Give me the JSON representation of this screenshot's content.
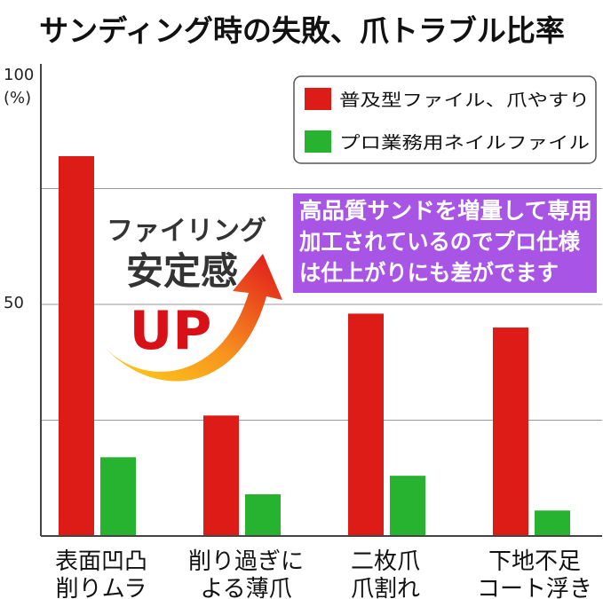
{
  "chart_data": {
    "type": "bar",
    "title": "サンディング時の失敗、爪トラブル比率",
    "ylabel_unit": "(%)",
    "ylim": [
      0,
      100
    ],
    "y_ticks": [
      "100",
      "50"
    ],
    "grid": true,
    "legend_position": "top-right",
    "categories": [
      [
        "表面凹凸",
        "削りムラ"
      ],
      [
        "削り過ぎに",
        "よる薄爪"
      ],
      [
        "二枚爪",
        "爪割れ"
      ],
      [
        "下地不足",
        "コート浮き"
      ]
    ],
    "series": [
      {
        "name": "普及型ファイル、爪やすり",
        "color": "#dd1c17",
        "values": [
          82,
          26,
          48,
          45
        ]
      },
      {
        "name": "プロ業務用ネイルファイル",
        "color": "#27b32f",
        "values": [
          17,
          9,
          13,
          5.5
        ]
      }
    ]
  },
  "promo_box": {
    "lines": [
      "高品質サンドを増量して専用",
      "加工されているのでプロ仕様",
      "は仕上がりにも差がでます"
    ],
    "color": "#a855e6"
  },
  "badge": {
    "line1": "ファイリング",
    "line2": "安定感",
    "line3": "UP",
    "up_color": "#d81018"
  }
}
